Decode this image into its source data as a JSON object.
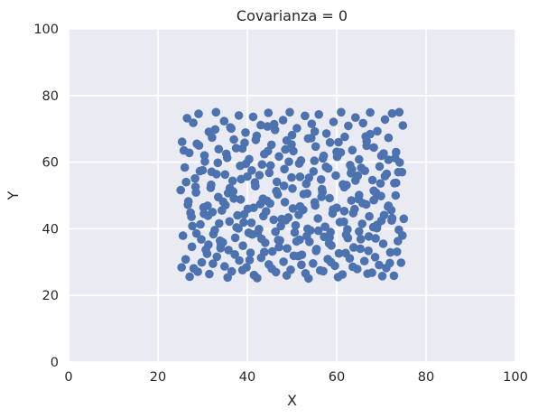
{
  "chart_data": {
    "type": "scatter",
    "title": "Covarianza = 0",
    "xlabel": "X",
    "ylabel": "Y",
    "xlim": [
      0,
      100
    ],
    "ylim": [
      0,
      100
    ],
    "xticks": [
      "0",
      "20",
      "40",
      "60",
      "80",
      "100"
    ],
    "yticks": [
      "0",
      "20",
      "40",
      "60",
      "80",
      "100"
    ],
    "grid": true,
    "colors": {
      "point": "#4c72b0",
      "background": "#eaeaf2",
      "grid": "#ffffff"
    },
    "x_range_of_points": [
      25,
      75
    ],
    "y_range_of_points": [
      25,
      75
    ],
    "x": [
      26.5,
      27.9,
      29.1,
      31.4,
      33.0,
      34.8,
      36.2,
      38.1,
      39.6,
      41.3,
      43.0,
      44.7,
      46.2,
      48.0,
      49.5,
      51.1,
      52.9,
      54.4,
      56.0,
      57.7,
      59.3,
      61.0,
      62.6,
      64.2,
      65.9,
      67.5,
      69.1,
      70.8,
      72.4,
      74.0,
      25.4,
      27.0,
      28.7,
      30.5,
      32.1,
      33.6,
      35.5,
      37.0,
      38.9,
      40.4,
      42.1,
      43.8,
      45.4,
      47.1,
      48.8,
      50.3,
      52.0,
      53.6,
      55.3,
      56.9,
      58.5,
      60.2,
      61.8,
      63.5,
      65.0,
      66.7,
      68.3,
      70.0,
      71.6,
      73.3,
      26.0,
      28.3,
      30.0,
      31.9,
      33.4,
      35.0,
      36.7,
      38.4,
      40.0,
      41.7,
      43.3,
      44.9,
      46.6,
      48.3,
      49.9,
      51.6,
      53.2,
      54.8,
      56.5,
      58.1,
      59.8,
      61.4,
      63.0,
      64.7,
      66.3,
      68.0,
      69.6,
      71.2,
      72.9,
      74.6,
      25.1,
      26.8,
      28.5,
      30.2,
      31.8,
      33.5,
      35.1,
      36.8,
      38.5,
      40.1,
      41.8,
      43.5,
      45.1,
      46.8,
      48.4,
      50.1,
      51.8,
      53.4,
      55.1,
      56.7,
      58.4,
      60.0,
      61.7,
      63.3,
      65.0,
      66.6,
      68.3,
      69.9,
      71.6,
      73.2,
      27.3,
      29.5,
      31.2,
      32.7,
      34.3,
      36.0,
      37.6,
      39.3,
      40.9,
      42.6,
      44.2,
      45.9,
      47.5,
      49.2,
      50.8,
      52.5,
      54.1,
      55.8,
      57.4,
      59.1,
      60.7,
      62.4,
      64.0,
      65.7,
      67.3,
      69.0,
      70.6,
      72.3,
      73.9,
      75.0,
      25.6,
      27.6,
      29.7,
      31.0,
      32.4,
      34.1,
      35.8,
      37.3,
      39.0,
      40.7,
      42.3,
      44.0,
      45.6,
      47.3,
      48.9,
      50.6,
      52.2,
      53.9,
      55.5,
      57.2,
      58.8,
      60.5,
      62.1,
      63.8,
      65.4,
      67.1,
      68.7,
      70.4,
      72.0,
      73.7,
      26.2,
      28.0,
      29.8,
      31.5,
      33.2,
      34.9,
      36.5,
      38.2,
      39.8,
      41.5,
      43.1,
      44.8,
      46.4,
      48.1,
      49.7,
      51.4,
      53.0,
      54.7,
      56.3,
      58.0,
      59.6,
      61.3,
      62.9,
      64.6,
      66.2,
      67.9,
      69.5,
      71.1,
      72.8,
      74.4,
      25.3,
      27.1,
      28.9,
      30.7,
      32.3,
      34.0,
      35.6,
      37.2,
      38.9,
      40.5,
      42.2,
      43.8,
      45.5,
      47.1,
      48.8,
      50.4,
      52.1,
      53.7,
      55.4,
      57.0,
      58.7,
      60.3,
      62.0,
      63.6,
      65.3,
      66.9,
      68.6,
      70.2,
      71.9,
      73.5,
      26.7,
      28.4,
      30.3,
      32.0,
      33.7,
      35.3,
      37.0,
      38.6,
      40.3,
      41.9,
      43.6,
      45.2,
      46.9,
      48.5,
      50.2,
      51.8,
      53.5,
      55.1,
      56.8,
      58.4,
      60.1,
      61.7,
      63.4,
      65.0,
      66.7,
      68.3,
      70.0,
      71.6,
      73.3,
      74.8,
      25.8,
      27.7,
      29.4,
      31.1,
      32.8,
      34.5,
      36.1,
      37.8,
      39.4,
      41.1,
      42.7,
      44.4,
      46.0,
      47.7,
      49.3,
      51.0,
      52.6,
      54.3,
      55.9,
      57.6,
      59.2,
      60.9,
      62.5,
      64.2,
      65.8,
      67.5,
      69.1,
      70.8,
      72.4,
      74.1,
      26.3,
      28.6,
      30.4,
      32.2,
      33.9,
      35.7,
      37.5,
      39.2,
      41.0,
      42.9,
      44.5,
      46.3,
      48.2,
      49.9,
      51.5,
      53.3,
      55.0,
      56.6,
      58.3,
      60.0,
      61.6,
      63.2,
      64.9,
      66.5,
      68.2,
      69.8,
      71.5,
      73.1,
      74.7,
      27.5,
      29.2,
      31.3,
      33.1,
      34.6,
      36.4,
      38.0,
      39.7,
      41.4,
      43.2,
      44.6,
      46.5,
      48.6,
      50.0,
      51.7,
      53.8,
      55.2,
      57.1,
      58.6,
      60.4,
      62.2,
      63.7,
      65.5,
      67.2,
      68.8,
      70.5,
      72.2,
      73.8
    ],
    "y": [
      73.2,
      71.8,
      74.5,
      69.1,
      75.0,
      72.3,
      70.4,
      74.0,
      68.9,
      73.6,
      71.1,
      74.8,
      69.7,
      72.6,
      75.0,
      70.2,
      73.9,
      71.5,
      74.3,
      68.6,
      72.1,
      75.0,
      70.9,
      73.4,
      71.7,
      74.9,
      69.3,
      72.8,
      74.6,
      75.0,
      66.1,
      62.8,
      65.5,
      60.2,
      67.4,
      63.9,
      61.3,
      66.8,
      64.1,
      60.9,
      67.9,
      62.4,
      65.2,
      61.7,
      66.5,
      63.3,
      60.5,
      67.1,
      64.7,
      61.1,
      65.9,
      62.2,
      67.6,
      63.6,
      60.8,
      66.3,
      64.4,
      61.9,
      67.3,
      63.0,
      58.4,
      55.1,
      57.6,
      53.2,
      59.8,
      56.3,
      54.4,
      58.9,
      55.7,
      53.9,
      59.3,
      56.8,
      54.1,
      57.9,
      55.4,
      59.6,
      53.5,
      57.2,
      54.8,
      58.1,
      56.0,
      53.3,
      59.1,
      55.9,
      57.4,
      54.6,
      58.7,
      56.5,
      53.7,
      57.0,
      51.6,
      48.2,
      50.9,
      46.4,
      52.3,
      49.5,
      47.1,
      51.2,
      48.8,
      46.0,
      52.8,
      49.0,
      47.6,
      50.3,
      48.0,
      52.1,
      46.7,
      50.6,
      47.9,
      51.9,
      49.2,
      46.3,
      52.5,
      48.5,
      50.1,
      47.3,
      51.4,
      49.8,
      46.9,
      50.0,
      44.8,
      41.3,
      43.9,
      39.6,
      45.5,
      42.2,
      40.4,
      44.3,
      41.8,
      39.9,
      45.2,
      42.7,
      40.8,
      43.4,
      41.0,
      45.7,
      39.5,
      43.1,
      40.6,
      44.6,
      42.0,
      39.8,
      45.9,
      41.5,
      43.7,
      40.2,
      44.1,
      42.5,
      39.7,
      43.0,
      37.9,
      34.6,
      36.8,
      32.5,
      38.4,
      35.3,
      33.6,
      37.3,
      34.9,
      32.8,
      38.7,
      35.8,
      33.2,
      36.5,
      34.1,
      38.9,
      32.2,
      36.1,
      33.9,
      37.6,
      35.0,
      32.6,
      38.2,
      34.4,
      36.9,
      33.4,
      37.1,
      35.5,
      32.9,
      36.3,
      30.8,
      28.1,
      29.9,
      26.4,
      31.6,
      28.7,
      27.2,
      30.5,
      28.4,
      26.1,
      31.3,
      29.3,
      27.0,
      30.1,
      27.7,
      31.8,
      26.6,
      29.6,
      27.5,
      30.9,
      28.9,
      26.3,
      31.1,
      27.9,
      30.3,
      26.8,
      29.1,
      28.2,
      25.9,
      29.8,
      28.4,
      25.6,
      27.1,
      33.7,
      29.5,
      34.2,
      25.4,
      32.3,
      27.6,
      30.6,
      25.2,
      33.0,
      28.0,
      34.5,
      26.0,
      31.9,
      29.2,
      25.1,
      33.4,
      27.3,
      30.0,
      25.5,
      32.7,
      28.6,
      34.0,
      26.5,
      31.5,
      25.8,
      29.7,
      33.1,
      47.2,
      52.6,
      44.5,
      57.1,
      41.6,
      62.5,
      49.1,
      54.9,
      38.8,
      66.7,
      43.8,
      59.0,
      36.6,
      63.8,
      46.1,
      55.6,
      40.0,
      69.2,
      51.0,
      37.4,
      61.6,
      45.3,
      57.8,
      39.2,
      64.9,
      48.6,
      42.4,
      60.7,
      53.8,
      71.0,
      63.5,
      40.8,
      57.3,
      46.9,
      69.8,
      35.9,
      52.2,
      44.0,
      65.8,
      38.3,
      56.1,
      48.4,
      71.4,
      42.9,
      60.1,
      36.2,
      50.4,
      67.2,
      39.4,
      58.6,
      45.8,
      62.9,
      37.2,
      54.5,
      47.7,
      68.4,
      41.2,
      55.8,
      43.2,
      59.9,
      54.0,
      38.6,
      62.0,
      45.0,
      36.4,
      50.7,
      64.2,
      41.9,
      57.5,
      47.4,
      70.7,
      39.1,
      52.9,
      65.3,
      44.2,
      37.8,
      60.4,
      49.6,
      35.6,
      63.1,
      42.1,
      56.7,
      48.9,
      67.7,
      40.5,
      53.6,
      46.6,
      61.2,
      38.0,
      43.6,
      65.0,
      35.2,
      56.4,
      48.1,
      70.1,
      40.1,
      59.5,
      46.3,
      37.0,
      63.3,
      51.3,
      42.6,
      68.1,
      36.7,
      55.3,
      47.0,
      61.9,
      39.0,
      66.0,
      53.1,
      44.7,
      58.3,
      37.7,
      50.8,
      62.6,
      45.6,
      57.0
    ]
  }
}
